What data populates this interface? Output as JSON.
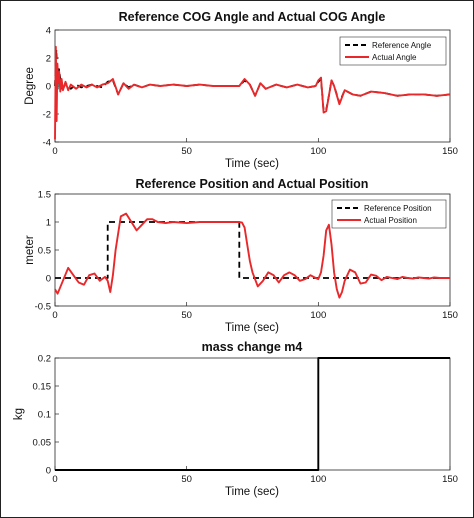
{
  "chart_data": [
    {
      "type": "line",
      "title": "Reference COG Angle and Actual COG Angle",
      "xlabel": "Time (sec)",
      "ylabel": "Degree",
      "xlim": [
        0,
        150
      ],
      "ylim": [
        -4,
        4
      ],
      "xticks": [
        "0",
        "50",
        "100",
        "150"
      ],
      "yticks": [
        "-4",
        "-2",
        "0",
        "2",
        "4"
      ],
      "legend_position": "top-right",
      "series": [
        {
          "name": "Reference Angle",
          "style": "dashed",
          "color": "#000000",
          "x": [
            0,
            0.5,
            1,
            1.5,
            2,
            3,
            4,
            6,
            8,
            10,
            14,
            18,
            20,
            22,
            24,
            26,
            28,
            30,
            33,
            36,
            40,
            45,
            50,
            55,
            60,
            65,
            70,
            72,
            74,
            76,
            78,
            80,
            84,
            88,
            92,
            96,
            99,
            100,
            101,
            102,
            103,
            104,
            105,
            106,
            108,
            110,
            113,
            116,
            120,
            125,
            130,
            135,
            140,
            145,
            150
          ],
          "values": [
            0,
            2.6,
            -0.2,
            1.2,
            0.5,
            -0.3,
            0.2,
            -0.2,
            0.1,
            -0.1,
            0.1,
            -0.1,
            0.3,
            0.4,
            -0.6,
            0.2,
            -0.1,
            0.1,
            -0.1,
            0.1,
            0,
            0.1,
            0,
            0.1,
            0,
            0,
            0,
            0.4,
            0.1,
            -0.7,
            0.2,
            -0.2,
            0.1,
            -0.1,
            0.1,
            -0.1,
            0,
            0.3,
            0.5,
            -1.8,
            -1.7,
            -0.7,
            0.4,
            0,
            -1.2,
            -0.3,
            -0.6,
            -0.7,
            -0.4,
            -0.5,
            -0.7,
            -0.6,
            -0.6,
            -0.7,
            -0.6
          ]
        },
        {
          "name": "Actual Angle",
          "style": "solid",
          "color": "#e8282a",
          "x": [
            0,
            0.3,
            0.6,
            0.9,
            1.2,
            1.6,
            2,
            2.5,
            3,
            4,
            5,
            6,
            8,
            10,
            12,
            14,
            16,
            18,
            20,
            22,
            24,
            26,
            28,
            30,
            33,
            36,
            40,
            45,
            50,
            55,
            60,
            65,
            70,
            72,
            74,
            76,
            78,
            80,
            84,
            88,
            92,
            96,
            99,
            100,
            101,
            102,
            103,
            104,
            105,
            106,
            108,
            110,
            113,
            116,
            120,
            125,
            130,
            135,
            140,
            145,
            150
          ],
          "values": [
            -3.8,
            2.8,
            -2.5,
            1.6,
            0.2,
            1.0,
            -0.4,
            0.5,
            -0.3,
            0.3,
            -0.3,
            0.1,
            -0.2,
            0.1,
            -0.1,
            0.1,
            -0.1,
            0.1,
            0.2,
            0.5,
            -0.6,
            0.2,
            -0.2,
            0.1,
            -0.1,
            0.1,
            0,
            0.1,
            0,
            0.1,
            0,
            0,
            0,
            0.5,
            0.1,
            -0.7,
            0.2,
            -0.2,
            0.1,
            -0.1,
            0.1,
            -0.1,
            0,
            0.4,
            0.6,
            -1.9,
            -1.8,
            -0.7,
            0.4,
            0,
            -1.3,
            -0.3,
            -0.6,
            -0.7,
            -0.4,
            -0.5,
            -0.7,
            -0.6,
            -0.6,
            -0.7,
            -0.6
          ]
        }
      ]
    },
    {
      "type": "line",
      "title": "Reference Position and Actual Position",
      "xlabel": "Time (sec)",
      "ylabel": "meter",
      "xlim": [
        0,
        150
      ],
      "ylim": [
        -0.5,
        1.5
      ],
      "xticks": [
        "0",
        "50",
        "100",
        "150"
      ],
      "yticks": [
        "-0.5",
        "0",
        "0.5",
        "1",
        "1.5"
      ],
      "legend_position": "top-right",
      "series": [
        {
          "name": "Reference Position",
          "style": "dashed",
          "color": "#000000",
          "x": [
            0,
            20,
            20,
            70,
            70,
            150
          ],
          "values": [
            0,
            0,
            1,
            1,
            0,
            0
          ]
        },
        {
          "name": "Actual Position",
          "style": "solid",
          "color": "#e8282a",
          "x": [
            0,
            1,
            3,
            5,
            7,
            9,
            11,
            13,
            15,
            17,
            19,
            20,
            21,
            22,
            23,
            25,
            27,
            29,
            31,
            33,
            35,
            37,
            39,
            42,
            45,
            50,
            55,
            60,
            65,
            70,
            71,
            72,
            73,
            74,
            75,
            77,
            79,
            81,
            83,
            85,
            87,
            89,
            91,
            93,
            95,
            97,
            99,
            100,
            101,
            102,
            103,
            104,
            105,
            106,
            107,
            108,
            109,
            110,
            112,
            114,
            116,
            118,
            120,
            122,
            124,
            126,
            128,
            130,
            132,
            134,
            136,
            138,
            140,
            142,
            144,
            146,
            148,
            150
          ],
          "values": [
            -0.2,
            -0.28,
            -0.05,
            0.18,
            0.05,
            -0.08,
            -0.12,
            0.05,
            0.08,
            -0.05,
            0.02,
            -0.05,
            -0.25,
            0.05,
            0.5,
            1.1,
            1.15,
            1.0,
            0.85,
            0.95,
            1.05,
            1.05,
            1.0,
            0.98,
            1.0,
            0.98,
            1.0,
            1.0,
            1.0,
            1.0,
            0.99,
            0.9,
            0.6,
            0.3,
            0.1,
            -0.15,
            -0.05,
            0.1,
            0.05,
            -0.08,
            0.05,
            0.1,
            0.05,
            -0.05,
            -0.02,
            0.05,
            0.0,
            -0.02,
            0.1,
            0.4,
            0.85,
            0.95,
            0.6,
            0.1,
            -0.2,
            -0.35,
            -0.25,
            -0.05,
            0.15,
            0.1,
            -0.1,
            -0.08,
            0.06,
            0.04,
            -0.04,
            0.02,
            0.0,
            -0.02,
            0.02,
            0.0,
            -0.01,
            0.01,
            0.0,
            -0.01,
            0.01,
            0.0,
            0.0,
            0.0
          ]
        }
      ]
    },
    {
      "type": "line",
      "title": "mass change m4",
      "xlabel": "Time (sec)",
      "ylabel": "kg",
      "xlim": [
        0,
        150
      ],
      "ylim": [
        0,
        0.2
      ],
      "xticks": [
        "0",
        "50",
        "100",
        "150"
      ],
      "yticks": [
        "0",
        "0.05",
        "0.1",
        "0.15",
        "0.2"
      ],
      "series": [
        {
          "style": "solid",
          "color": "#000000",
          "x": [
            0,
            100,
            100,
            150
          ],
          "values": [
            0,
            0,
            0.2,
            0.2
          ]
        }
      ]
    }
  ]
}
